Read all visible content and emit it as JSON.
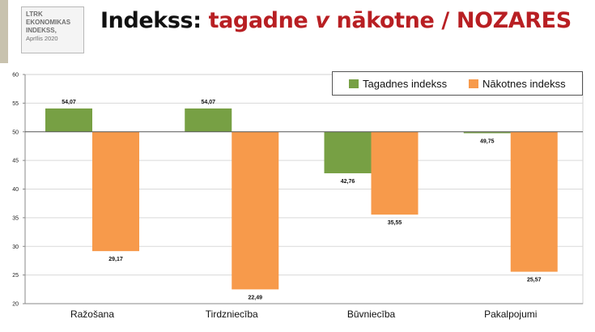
{
  "logo": {
    "lines": [
      "LTRK",
      "EKONOMIKAS",
      "INDEKSS,"
    ],
    "date": "Aprīlis 2020"
  },
  "title": {
    "part1": "Indekss: ",
    "part2": "tagadne ",
    "part3": "v",
    "part4": " nākotne / NOZARES"
  },
  "colors": {
    "current": "#77a044",
    "future": "#f79a4b",
    "title_red": "#b81f23"
  },
  "chart_data": {
    "type": "bar",
    "baseline": 50,
    "ylim": [
      20,
      60
    ],
    "yticks": [
      20,
      25,
      30,
      35,
      40,
      45,
      50,
      55,
      60
    ],
    "grid": true,
    "legend_position": "top-right",
    "categories": [
      "Ražošana",
      "Tirdzniecība",
      "Būvniecība",
      "Pakalpojumi"
    ],
    "series": [
      {
        "name": "Tagadnes indekss",
        "values": [
          54.07,
          54.07,
          42.76,
          49.75
        ],
        "labels": [
          "54,07",
          "54,07",
          "42,76",
          "49,75"
        ]
      },
      {
        "name": "Nākotnes indekss",
        "values": [
          29.17,
          22.49,
          35.55,
          25.57
        ],
        "labels": [
          "29,17",
          "22,49",
          "35,55",
          "25,57"
        ]
      }
    ]
  }
}
